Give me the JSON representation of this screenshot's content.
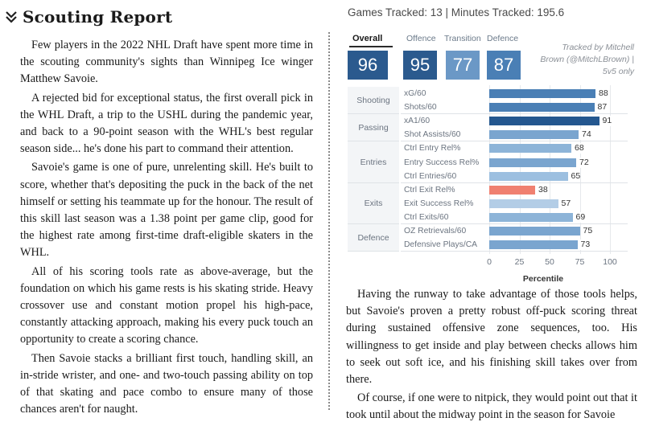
{
  "section": {
    "title": "Scouting Report"
  },
  "article_left": [
    "Few players in the 2022 NHL Draft have spent more time in the scouting community's sights than Winnipeg Ice winger Matthew Savoie.",
    "A rejected bid for exceptional status, the first overall pick in the WHL Draft, a trip to the USHL during the pandemic year, and back to a 90-point season with the WHL's best regular season side... he's done his part to command their attention.",
    "Savoie's game is one of pure, unrelenting skill. He's built to score, whether that's depositing the puck in the back of the net himself or setting his teammate up for the honour. The result of this skill last season was a 1.38 point per game clip, good for the highest rate among first-time draft-eligible skaters in the WHL.",
    "All of his scoring tools rate as above-average, but the foundation on which his game rests is his skating stride. Heavy crossover use and constant motion propel his high-pace, constantly attacking approach, making his every puck touch an opportunity to create a scoring chance.",
    "Then Savoie stacks a brilliant first touch, handling skill, an in-stride wrister, and one- and two-touch passing ability on top of that skating and pace combo to ensure many of those chances aren't for naught."
  ],
  "article_right": [
    "Having the runway to take advantage of those tools helps, but Savoie's proven a pretty robust off-puck scoring threat during sustained offensive zone sequences, too. His willingness to get inside and play between checks allows him to seek out soft ice, and his finishing skill takes over from there.",
    "Of course, if one were to nitpick, they would point out that it took until about the midway point in the season for Savoie"
  ],
  "viz": {
    "header": "Games Tracked: 13 | Minutes Tracked: 195.6",
    "tabs": [
      "Overall",
      "Offence",
      "Transition",
      "Defence"
    ],
    "scores": [
      "96",
      "95",
      "77",
      "87"
    ],
    "tracked_by": [
      "Tracked by Mitchell",
      "Brown (@MitchLBrown) |",
      "5v5 only"
    ],
    "groups": [
      "Shooting",
      "Passing",
      "Entries",
      "Exits",
      "Defence"
    ]
  },
  "chart_data": {
    "type": "bar",
    "orientation": "horizontal",
    "xlabel": "Percentile",
    "xlim": [
      0,
      100
    ],
    "x_ticks": [
      "0",
      "25",
      "50",
      "75",
      "100"
    ],
    "categories": [
      "xG/60",
      "Shots/60",
      "xA1/60",
      "Shot Assists/60",
      "Ctrl Entry Rel%",
      "Entry Success Rel%",
      "Ctrl Entries/60",
      "Ctrl Exit Rel%",
      "Exit Success Rel%",
      "Ctrl Exits/60",
      "OZ Retrievals/60",
      "Defensive Plays/CA"
    ],
    "groups": [
      "Shooting",
      "Shooting",
      "Passing",
      "Passing",
      "Entries",
      "Entries",
      "Entries",
      "Exits",
      "Exits",
      "Exits",
      "Defence",
      "Defence"
    ],
    "values": [
      88,
      87,
      91,
      74,
      68,
      72,
      65,
      38,
      57,
      69,
      75,
      73
    ],
    "colors": [
      "#4a7fb5",
      "#4a7fb5",
      "#24578f",
      "#7aa5cf",
      "#8db4d8",
      "#7aa5cf",
      "#9cbfe0",
      "#f08070",
      "#b3cde6",
      "#8db4d8",
      "#7aa5cf",
      "#7aa5cf"
    ]
  }
}
